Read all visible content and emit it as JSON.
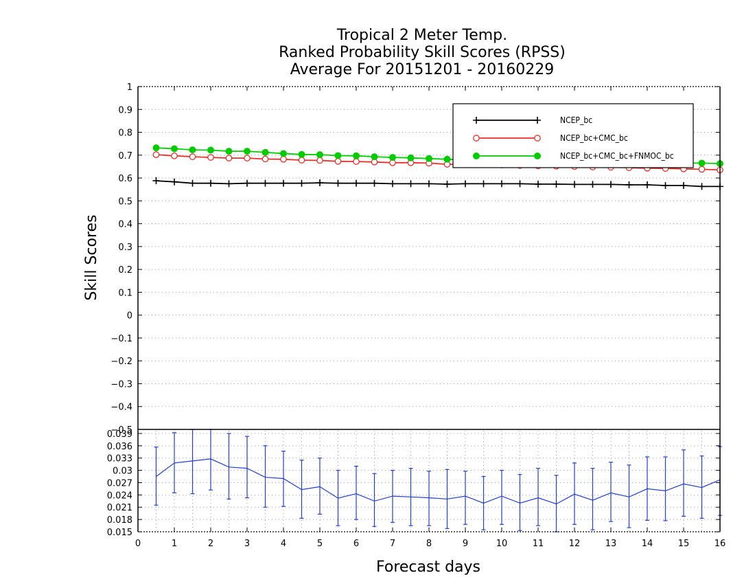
{
  "colors": {
    "ncep": "#000000",
    "ncep_cmc": "#e8302a",
    "ncep_cmc_fnmoc": "#00cc00",
    "spread": "#1f3fd1",
    "grid": "#999999"
  },
  "chart_data": [
    {
      "type": "line",
      "title": [
        "Tropical 2 Meter Temp.",
        "Ranked Probability Skill Scores (RPSS)",
        "Average For 20151201 - 20160229"
      ],
      "xlabel": "Forecast days",
      "ylabel": "Skill Scores",
      "xlim": [
        0,
        16
      ],
      "ylim": [
        -0.5,
        1
      ],
      "yticks": [
        1,
        0.9,
        0.8,
        0.7,
        0.6,
        0.5,
        0.4,
        0.3,
        0.2,
        0.1,
        0,
        -0.1,
        -0.2,
        -0.3,
        -0.4,
        -0.5
      ],
      "ytick_labels": [
        "1",
        "0.9",
        "0.8",
        "0.7",
        "0.6",
        "0.5",
        "0.4",
        "0.3",
        "0.2",
        "0.1",
        "0",
        "−0.1",
        "−0.2",
        "−0.3",
        "−0.4",
        "−0.5"
      ],
      "grid": true,
      "legend_position": "top-right",
      "x": [
        0.5,
        1,
        1.5,
        2,
        2.5,
        3,
        3.5,
        4,
        4.5,
        5,
        5.5,
        6,
        6.5,
        7,
        7.5,
        8,
        8.5,
        9,
        9.5,
        10,
        10.5,
        11,
        11.5,
        12,
        12.5,
        13,
        13.5,
        14,
        14.5,
        15,
        15.5,
        16
      ],
      "series": [
        {
          "name": "NCEP_bc",
          "marker": "plus",
          "color": "#000000",
          "values": [
            0.588,
            0.583,
            0.577,
            0.577,
            0.575,
            0.577,
            0.577,
            0.577,
            0.577,
            0.579,
            0.577,
            0.577,
            0.577,
            0.575,
            0.575,
            0.575,
            0.573,
            0.575,
            0.575,
            0.575,
            0.575,
            0.573,
            0.573,
            0.572,
            0.572,
            0.572,
            0.57,
            0.57,
            0.567,
            0.567,
            0.563,
            0.563
          ]
        },
        {
          "name": "NCEP_bc+CMC_bc",
          "marker": "open-circle",
          "color": "#e8302a",
          "values": [
            0.702,
            0.697,
            0.693,
            0.69,
            0.687,
            0.687,
            0.683,
            0.682,
            0.678,
            0.677,
            0.673,
            0.672,
            0.67,
            0.667,
            0.667,
            0.665,
            0.66,
            0.66,
            0.658,
            0.657,
            0.655,
            0.653,
            0.652,
            0.65,
            0.648,
            0.647,
            0.645,
            0.643,
            0.642,
            0.64,
            0.638,
            0.635
          ]
        },
        {
          "name": "NCEP_bc+CMC_bc+FNMOC_bc",
          "marker": "filled-circle",
          "color": "#00cc00",
          "values": [
            0.732,
            0.728,
            0.723,
            0.722,
            0.717,
            0.717,
            0.712,
            0.707,
            0.703,
            0.702,
            0.698,
            0.697,
            0.693,
            0.69,
            0.688,
            0.685,
            0.682,
            0.68,
            0.678,
            0.677,
            0.675,
            0.673,
            0.672,
            0.67,
            0.67,
            0.668,
            0.668,
            0.667,
            0.667,
            0.665,
            0.665,
            0.663
          ]
        }
      ]
    },
    {
      "type": "line",
      "xlabel": "Forecast days",
      "xlim": [
        0,
        16
      ],
      "xticks": [
        0,
        1,
        2,
        3,
        4,
        5,
        6,
        7,
        8,
        9,
        10,
        11,
        12,
        13,
        14,
        15,
        16
      ],
      "ylim": [
        0.015,
        0.04
      ],
      "yticks": [
        0.039,
        0.036,
        0.033,
        0.03,
        0.027,
        0.024,
        0.021,
        0.018,
        0.015
      ],
      "ytick_labels": [
        "0.039",
        "0.036",
        "0.033",
        "0.03",
        "0.027",
        "0.024",
        "0.021",
        "0.018",
        "0.015"
      ],
      "grid": true,
      "x": [
        0.5,
        1,
        1.5,
        2,
        2.5,
        3,
        3.5,
        4,
        4.5,
        5,
        5.5,
        6,
        6.5,
        7,
        7.5,
        8,
        8.5,
        9,
        9.5,
        10,
        10.5,
        11,
        11.5,
        12,
        12.5,
        13,
        13.5,
        14,
        14.5,
        15,
        15.5,
        16
      ],
      "series": [
        {
          "color": "#1f3fd1",
          "values": [
            0.0285,
            0.0318,
            0.0323,
            0.0328,
            0.0308,
            0.0305,
            0.0283,
            0.028,
            0.0253,
            0.026,
            0.0232,
            0.0243,
            0.0225,
            0.0237,
            0.0235,
            0.0233,
            0.023,
            0.0237,
            0.022,
            0.0237,
            0.022,
            0.0233,
            0.0218,
            0.0242,
            0.0227,
            0.0245,
            0.0235,
            0.0255,
            0.025,
            0.0267,
            0.0258,
            0.0277
          ],
          "error_low": [
            0.0215,
            0.0245,
            0.0243,
            0.0252,
            0.023,
            0.0233,
            0.021,
            0.0212,
            0.0183,
            0.0193,
            0.0165,
            0.018,
            0.0163,
            0.0173,
            0.0165,
            0.0165,
            0.0158,
            0.0168,
            0.0155,
            0.0168,
            0.0153,
            0.0165,
            0.0148,
            0.0168,
            0.0155,
            0.0175,
            0.016,
            0.0178,
            0.0177,
            0.0188,
            0.0183,
            0.019
          ],
          "error_high": [
            0.0357,
            0.0392,
            0.0402,
            0.0402,
            0.039,
            0.0383,
            0.036,
            0.0347,
            0.0325,
            0.033,
            0.03,
            0.031,
            0.0292,
            0.03,
            0.0305,
            0.0298,
            0.0302,
            0.0298,
            0.0285,
            0.03,
            0.029,
            0.0305,
            0.0288,
            0.0318,
            0.0305,
            0.032,
            0.0313,
            0.0333,
            0.0333,
            0.035,
            0.0335,
            0.0358
          ]
        }
      ]
    }
  ]
}
